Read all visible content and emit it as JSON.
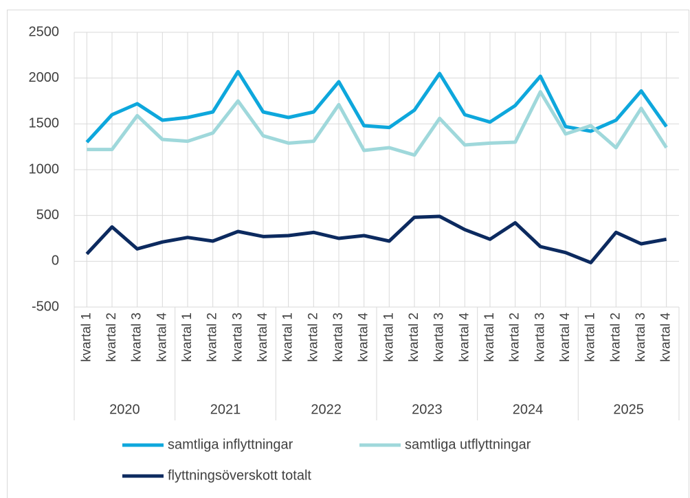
{
  "chart_data": {
    "type": "line",
    "categories": [
      "kvartal 1",
      "kvartal 2",
      "kvartal 3",
      "kvartal 4",
      "kvartal 1",
      "kvartal 2",
      "kvartal 3",
      "kvartal 4",
      "kvartal 1",
      "kvartal 2",
      "kvartal 3",
      "kvartal 4",
      "kvartal 1",
      "kvartal 2",
      "kvartal 3",
      "kvartal 4",
      "kvartal 1",
      "kvartal 2",
      "kvartal 3",
      "kvartal 4",
      "kvartal 1",
      "kvartal 2",
      "kvartal 3",
      "kvartal 4"
    ],
    "category_groups": [
      "2020",
      "2021",
      "2022",
      "2023",
      "2024",
      "2025"
    ],
    "series": [
      {
        "name": "samtliga inflyttningar",
        "color": "#0ea7dc",
        "values": [
          1300,
          1600,
          1720,
          1540,
          1570,
          1630,
          2070,
          1630,
          1570,
          1630,
          1960,
          1480,
          1460,
          1650,
          2050,
          1600,
          1520,
          1700,
          2020,
          1470,
          1420,
          1540,
          1860,
          1470
        ]
      },
      {
        "name": "samtliga utflyttningar",
        "color": "#9fd8db",
        "values": [
          1220,
          1220,
          1590,
          1330,
          1310,
          1400,
          1750,
          1370,
          1290,
          1310,
          1710,
          1210,
          1240,
          1160,
          1560,
          1270,
          1290,
          1300,
          1850,
          1390,
          1480,
          1240,
          1670,
          1240
        ]
      },
      {
        "name": "flyttningsöverskott totalt",
        "color": "#0c2a5f",
        "values": [
          80,
          375,
          135,
          210,
          260,
          220,
          325,
          270,
          280,
          315,
          250,
          280,
          220,
          480,
          490,
          345,
          240,
          420,
          160,
          95,
          -15,
          315,
          190,
          240
        ]
      }
    ],
    "ylim": [
      -500,
      2500
    ],
    "yticks": [
      -500,
      0,
      500,
      1000,
      1500,
      2000,
      2500
    ],
    "grid": true
  }
}
